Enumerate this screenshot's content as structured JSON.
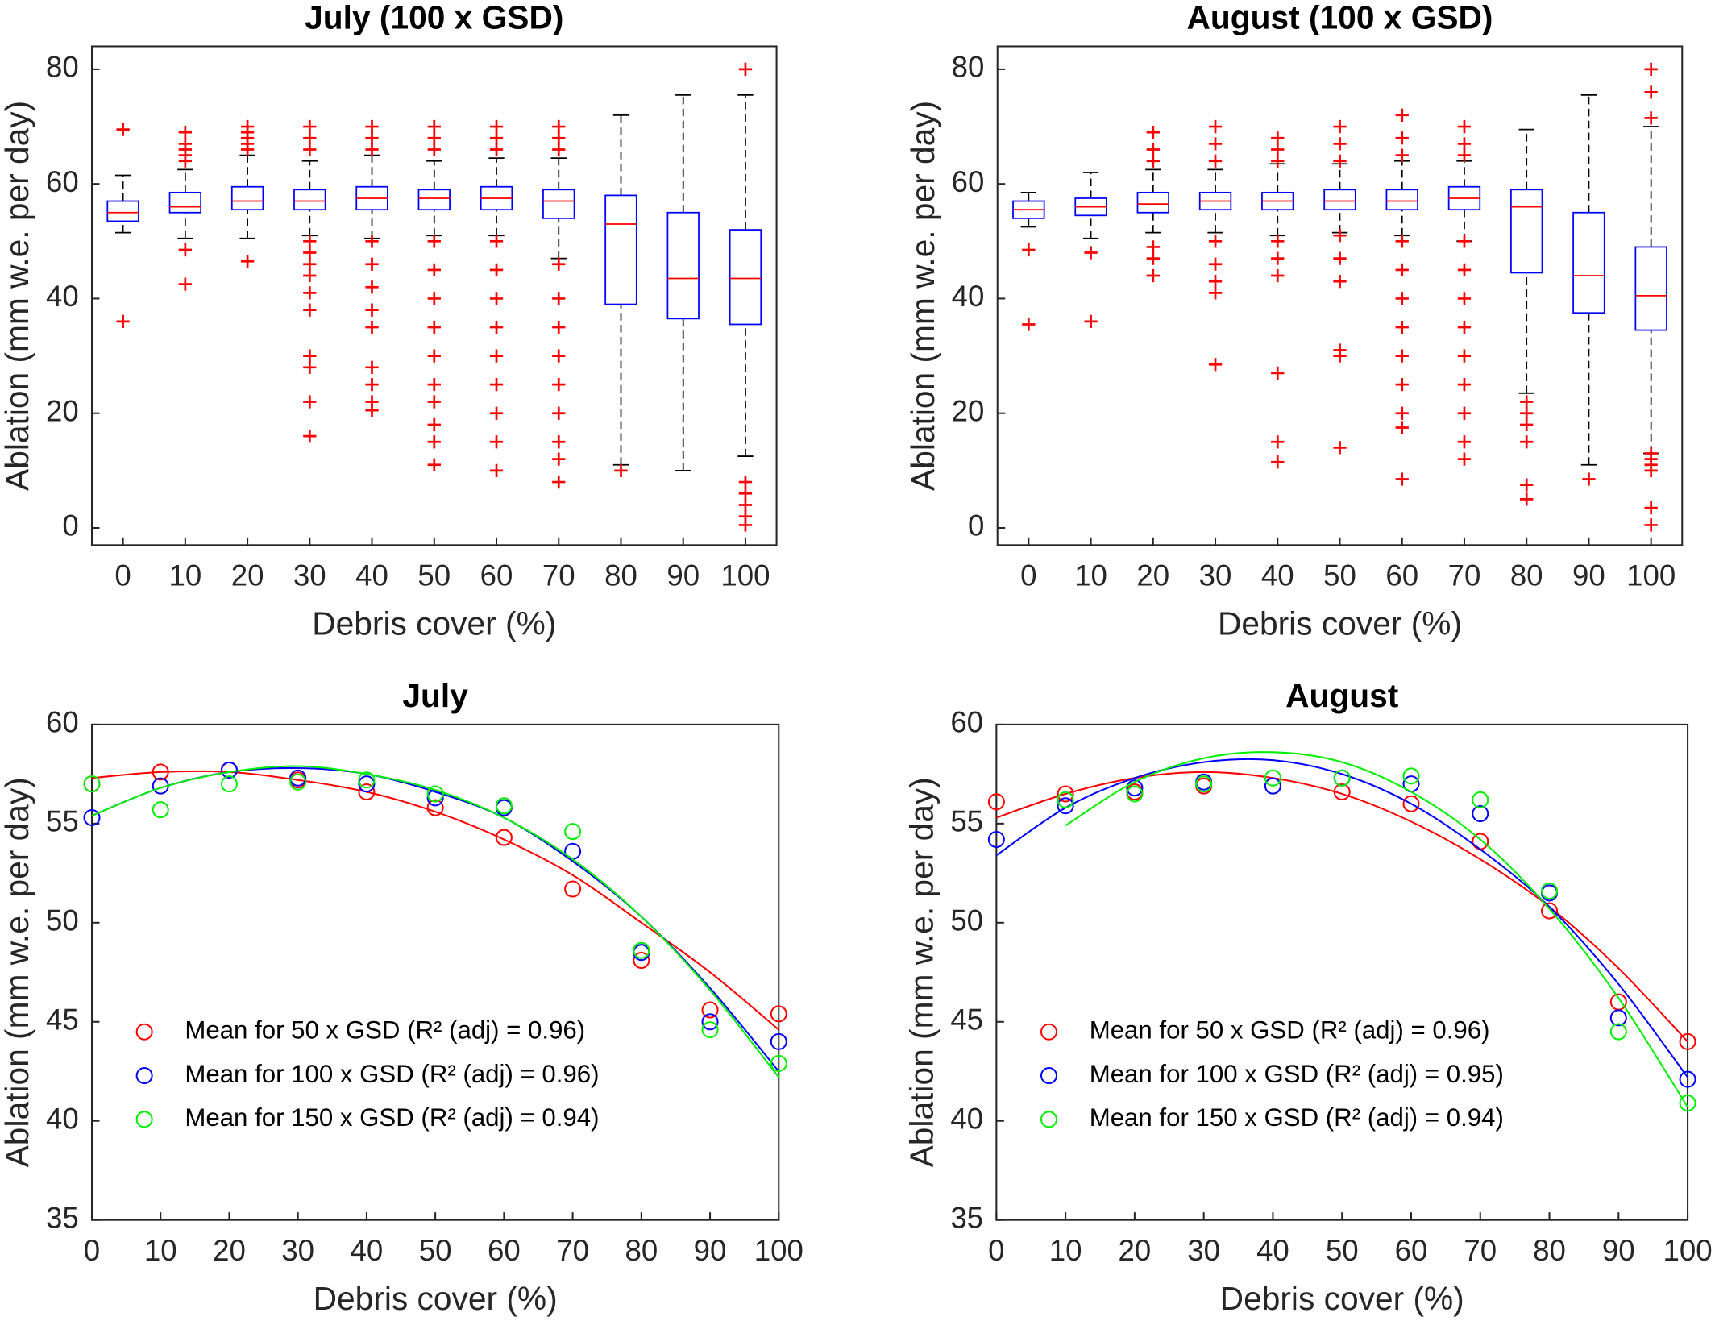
{
  "chart_data": [
    {
      "type": "box",
      "title": "July (100 x GSD)",
      "xlabel": "Debris cover (%)",
      "ylabel": "Ablation (mm w.e. per day)",
      "categories": [
        "0",
        "10",
        "20",
        "30",
        "40",
        "50",
        "60",
        "70",
        "80",
        "90",
        "100"
      ],
      "ylim": [
        -3,
        84
      ],
      "yticks": [
        0,
        20,
        40,
        60,
        80
      ],
      "box_color": "#0000ff",
      "median_color": "#ff0000",
      "outlier_color": "#ff0000",
      "whisker_color": "#000000",
      "boxes": [
        {
          "low": 51.5,
          "q1": 53.5,
          "median": 55,
          "q3": 57,
          "high": 61.5,
          "outliers": [
            69.5,
            36
          ]
        },
        {
          "low": 50.5,
          "q1": 55,
          "median": 56,
          "q3": 58.5,
          "high": 62.5,
          "outliers": [
            69,
            67,
            66,
            65,
            64,
            48.5,
            42.5
          ]
        },
        {
          "low": 50.5,
          "q1": 55.5,
          "median": 57,
          "q3": 59.5,
          "high": 65,
          "outliers": [
            70,
            69,
            68,
            67,
            66,
            46.5
          ]
        },
        {
          "low": 51,
          "q1": 55.5,
          "median": 57,
          "q3": 59,
          "high": 64,
          "outliers": [
            70,
            68,
            66,
            50,
            48,
            46,
            44,
            41,
            38,
            30,
            28,
            22,
            16
          ]
        },
        {
          "low": 50.5,
          "q1": 55.5,
          "median": 57.5,
          "q3": 59.5,
          "high": 65,
          "outliers": [
            70,
            68,
            66,
            50,
            46,
            42,
            38,
            35,
            28,
            25,
            22,
            20.5
          ]
        },
        {
          "low": 51,
          "q1": 55.5,
          "median": 57.5,
          "q3": 59,
          "high": 64,
          "outliers": [
            70,
            68,
            66,
            50,
            45,
            40,
            35,
            30,
            25,
            22,
            18,
            15,
            11
          ]
        },
        {
          "low": 51,
          "q1": 55.5,
          "median": 57.5,
          "q3": 59.5,
          "high": 64.5,
          "outliers": [
            70,
            68,
            66,
            50,
            45,
            40,
            35,
            30,
            25,
            20,
            15,
            10
          ]
        },
        {
          "low": 47,
          "q1": 54,
          "median": 57,
          "q3": 59,
          "high": 64.5,
          "outliers": [
            70,
            68,
            66,
            46,
            40,
            35,
            30,
            25,
            20,
            15,
            12,
            8
          ]
        },
        {
          "low": 11,
          "q1": 39,
          "median": 53,
          "q3": 58,
          "high": 72,
          "outliers": [
            10
          ]
        },
        {
          "low": 10,
          "q1": 36.5,
          "median": 43.5,
          "q3": 55,
          "high": 75.5,
          "outliers": []
        },
        {
          "low": 12.5,
          "q1": 35.5,
          "median": 43.5,
          "q3": 52,
          "high": 75.5,
          "outliers": [
            80,
            8,
            6,
            4,
            2,
            0.5
          ]
        }
      ]
    },
    {
      "type": "box",
      "title": "August (100 x GSD)",
      "xlabel": "Debris cover (%)",
      "ylabel": "Ablation (mm w.e. per day)",
      "categories": [
        "0",
        "10",
        "20",
        "30",
        "40",
        "50",
        "60",
        "70",
        "80",
        "90",
        "100"
      ],
      "ylim": [
        -3,
        84
      ],
      "yticks": [
        0,
        20,
        40,
        60,
        80
      ],
      "box_color": "#0000ff",
      "median_color": "#ff0000",
      "outlier_color": "#ff0000",
      "whisker_color": "#000000",
      "boxes": [
        {
          "low": 52.5,
          "q1": 54,
          "median": 55.5,
          "q3": 57,
          "high": 58.5,
          "outliers": [
            48.5,
            35.5
          ]
        },
        {
          "low": 50.5,
          "q1": 54.5,
          "median": 56,
          "q3": 57.5,
          "high": 62,
          "outliers": [
            48,
            36
          ]
        },
        {
          "low": 51.5,
          "q1": 55,
          "median": 56.5,
          "q3": 58.5,
          "high": 62.5,
          "outliers": [
            69,
            66,
            64,
            49,
            47,
            44
          ]
        },
        {
          "low": 51.5,
          "q1": 55.5,
          "median": 57,
          "q3": 58.5,
          "high": 62.5,
          "outliers": [
            70,
            67,
            64,
            50,
            46,
            43,
            41,
            28.5
          ]
        },
        {
          "low": 51,
          "q1": 55.5,
          "median": 57,
          "q3": 58.5,
          "high": 63.5,
          "outliers": [
            68,
            66,
            64,
            50,
            47,
            44,
            27,
            15,
            11.5
          ]
        },
        {
          "low": 51.5,
          "q1": 55.5,
          "median": 57,
          "q3": 59,
          "high": 63.5,
          "outliers": [
            70,
            67,
            64,
            51,
            47,
            43,
            31,
            30,
            14
          ]
        },
        {
          "low": 51,
          "q1": 55.5,
          "median": 57,
          "q3": 59,
          "high": 64,
          "outliers": [
            72,
            68,
            65,
            50,
            45,
            40,
            35,
            30,
            25,
            20,
            17.5,
            8.5
          ]
        },
        {
          "low": 50,
          "q1": 55.5,
          "median": 57.5,
          "q3": 59.5,
          "high": 64,
          "outliers": [
            70,
            67,
            65,
            50,
            45,
            40,
            35,
            30,
            25,
            20,
            15,
            12
          ]
        },
        {
          "low": 23.5,
          "q1": 44.5,
          "median": 56,
          "q3": 59,
          "high": 69.5,
          "outliers": [
            22,
            20,
            18,
            15,
            7.5,
            5
          ]
        },
        {
          "low": 11,
          "q1": 37.5,
          "median": 44,
          "q3": 55,
          "high": 75.5,
          "outliers": [
            8.5
          ]
        },
        {
          "low": 13,
          "q1": 34.5,
          "median": 40.5,
          "q3": 49,
          "high": 70,
          "outliers": [
            80,
            76,
            71.5,
            13,
            12,
            11,
            10,
            3.5,
            0.5
          ]
        }
      ]
    },
    {
      "type": "scatter",
      "title": "July",
      "xlabel": "Debris cover (%)",
      "ylabel": "Ablation (mm w.e. per day)",
      "x": [
        0,
        10,
        20,
        30,
        40,
        50,
        60,
        70,
        80,
        90,
        100
      ],
      "xlim": [
        0,
        100
      ],
      "xticks": [
        0,
        10,
        20,
        30,
        40,
        50,
        60,
        70,
        80,
        90,
        100
      ],
      "ylim": [
        35,
        60
      ],
      "yticks": [
        35,
        40,
        45,
        50,
        55,
        60
      ],
      "legend": "lower left",
      "series": [
        {
          "name": "Mean for 50 x GSD (R² (adj) = 0.96)",
          "color": "#ff0000",
          "values": [
            57.0,
            57.6,
            57.7,
            57.2,
            56.6,
            55.8,
            54.3,
            51.7,
            48.1,
            45.6,
            45.4
          ],
          "fit": [
            57.3,
            57.6,
            57.6,
            57.2,
            56.6,
            55.6,
            54.2,
            52.4,
            50.0,
            47.5,
            44.6
          ]
        },
        {
          "name": "Mean for 100 x GSD (R² (adj) = 0.96)",
          "color": "#0000ff",
          "values": [
            55.3,
            56.9,
            57.7,
            57.3,
            57.0,
            56.3,
            55.8,
            53.6,
            48.5,
            45.0,
            44.0
          ],
          "fit": [
            55.4,
            56.8,
            57.6,
            57.8,
            57.5,
            56.6,
            55.3,
            53.1,
            50.3,
            46.7,
            42.5
          ]
        },
        {
          "name": "Mean for 150 x GSD (R² (adj) = 0.94)",
          "color": "#00ee00",
          "values": [
            57.0,
            55.7,
            57.0,
            57.1,
            57.2,
            56.5,
            55.9,
            54.6,
            48.6,
            44.6,
            42.9
          ],
          "fit": [
            55.4,
            56.8,
            57.6,
            57.9,
            57.5,
            56.7,
            55.3,
            53.2,
            50.3,
            46.6,
            42.2
          ]
        }
      ]
    },
    {
      "type": "scatter",
      "title": "August",
      "xlabel": "Debris cover (%)",
      "ylabel": "Ablation (mm w.e. per day)",
      "x": [
        0,
        10,
        20,
        30,
        40,
        50,
        60,
        70,
        80,
        90,
        100
      ],
      "xlim": [
        0,
        100
      ],
      "xticks": [
        0,
        10,
        20,
        30,
        40,
        50,
        60,
        70,
        80,
        90,
        100
      ],
      "ylim": [
        35,
        60
      ],
      "yticks": [
        35,
        40,
        45,
        50,
        55,
        60
      ],
      "legend": "lower left",
      "series": [
        {
          "name": "Mean for 50 x GSD (R² (adj) = 0.96)",
          "color": "#ff0000",
          "values": [
            56.1,
            56.5,
            56.6,
            56.9,
            56.9,
            56.6,
            56.0,
            54.1,
            50.6,
            46.0,
            44.0
          ],
          "fit": [
            55.3,
            56.5,
            57.3,
            57.6,
            57.3,
            56.5,
            55.1,
            53.2,
            50.8,
            47.7,
            44.0
          ]
        },
        {
          "name": "Mean for 100 x GSD (R² (adj) = 0.95)",
          "color": "#0000ff",
          "values": [
            54.2,
            55.9,
            56.8,
            57.1,
            56.9,
            57.3,
            57.0,
            55.5,
            51.5,
            45.2,
            42.1
          ],
          "fit": [
            53.4,
            55.8,
            57.3,
            58.1,
            58.2,
            57.5,
            56.0,
            53.7,
            50.8,
            46.9,
            42.2
          ]
        },
        {
          "name": "Mean for 150 x GSD (R² (adj) = 0.94)",
          "color": "#00ee00",
          "values": [
            null,
            56.2,
            56.5,
            57.0,
            57.3,
            57.3,
            57.4,
            56.2,
            51.6,
            44.5,
            40.9
          ],
          "fit": [
            null,
            54.9,
            57.1,
            58.3,
            58.6,
            58.1,
            56.6,
            54.2,
            50.7,
            46.2,
            40.7
          ]
        }
      ]
    }
  ]
}
